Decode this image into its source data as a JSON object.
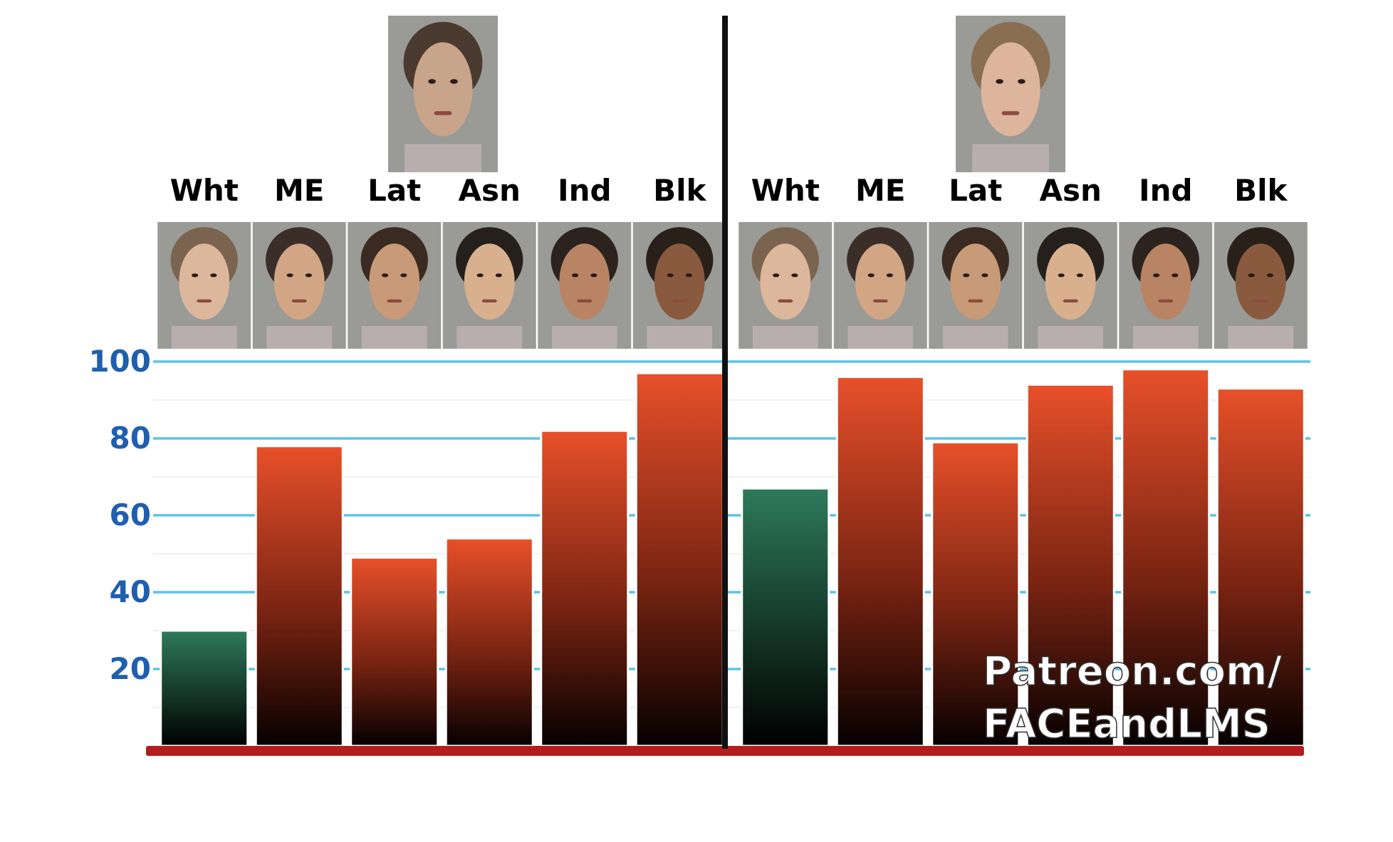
{
  "chart_data": {
    "type": "bar",
    "ylim": [
      0,
      100
    ],
    "yticks": [
      "100",
      "80",
      "60",
      "40",
      "20"
    ],
    "ytick_values": [
      100,
      80,
      60,
      40,
      20
    ],
    "grid": true,
    "groups": [
      {
        "reference_face": "male-average-face",
        "categories": [
          "Wht",
          "ME",
          "Lat",
          "Asn",
          "Ind",
          "Blk"
        ],
        "faces": [
          "female-white-face",
          "female-middle-eastern-face",
          "female-latina-face",
          "female-asian-face",
          "female-indian-face",
          "female-black-face"
        ],
        "values": [
          30,
          78,
          49,
          54,
          82,
          97
        ],
        "highlight": [
          true,
          false,
          false,
          false,
          false,
          false
        ]
      },
      {
        "reference_face": "female-average-face",
        "categories": [
          "Wht",
          "ME",
          "Lat",
          "Asn",
          "Ind",
          "Blk"
        ],
        "faces": [
          "male-white-face",
          "male-middle-eastern-face",
          "male-latino-face",
          "male-asian-face",
          "male-indian-face",
          "male-black-face"
        ],
        "values": [
          67,
          96,
          79,
          94,
          98,
          93
        ],
        "highlight": [
          true,
          false,
          false,
          false,
          false,
          false
        ]
      }
    ]
  },
  "colors": {
    "bar_top": "#e8502a",
    "bar_mid": "#7a2412",
    "bar_bottom": "#050000",
    "highlight_top": "#2e7a5a",
    "highlight_bottom": "#000000",
    "gridline": "#5bc3e8",
    "tick_label": "#1f5fae",
    "baseline": "#b31d1d",
    "divider": "#111111"
  },
  "watermark": {
    "line1": "Patreon.com/",
    "line2": "FACEandLMS"
  }
}
